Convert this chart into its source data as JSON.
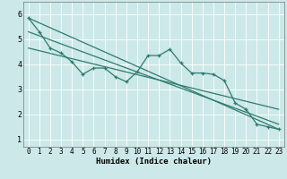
{
  "xlabel": "Humidex (Indice chaleur)",
  "bg_color": "#cce8e8",
  "grid_color": "#ffffff",
  "line_color": "#2e7b6e",
  "xlim": [
    -0.5,
    23.5
  ],
  "ylim": [
    0.7,
    6.5
  ],
  "x_ticks": [
    0,
    1,
    2,
    3,
    4,
    5,
    6,
    7,
    8,
    9,
    10,
    11,
    12,
    13,
    14,
    15,
    16,
    17,
    18,
    19,
    20,
    21,
    22,
    23
  ],
  "y_ticks": [
    1,
    2,
    3,
    4,
    5,
    6
  ],
  "scatter_x": [
    0,
    1,
    2,
    3,
    4,
    5,
    6,
    7,
    8,
    9,
    10,
    11,
    12,
    13,
    14,
    15,
    16,
    17,
    18,
    19,
    20,
    21,
    22,
    23
  ],
  "scatter_y": [
    5.85,
    5.3,
    4.65,
    4.45,
    4.1,
    3.6,
    3.85,
    3.85,
    3.5,
    3.3,
    3.7,
    4.35,
    4.35,
    4.6,
    4.05,
    3.65,
    3.65,
    3.6,
    3.35,
    2.45,
    2.2,
    1.6,
    1.5,
    1.4
  ],
  "line1_x": [
    0,
    23
  ],
  "line1_y": [
    5.85,
    1.4
  ],
  "line2_x": [
    0,
    23
  ],
  "line2_y": [
    5.3,
    1.6
  ],
  "line3_x": [
    0,
    23
  ],
  "line3_y": [
    4.65,
    2.2
  ],
  "tick_fontsize": 5.5,
  "xlabel_fontsize": 6.5
}
